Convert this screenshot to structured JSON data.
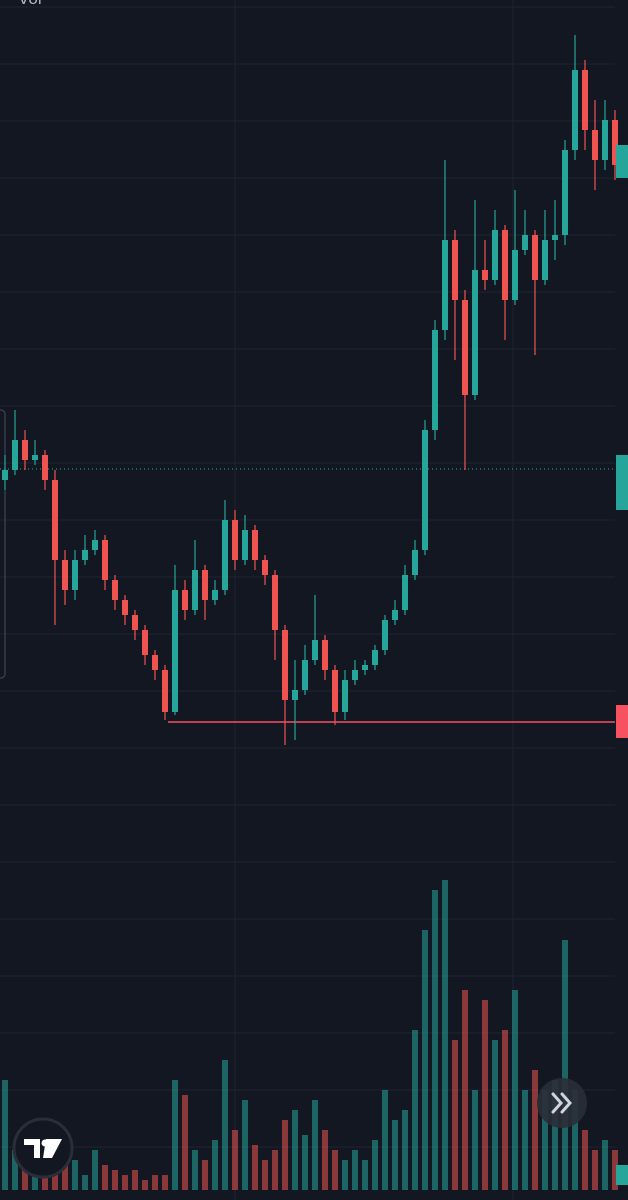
{
  "chart_data": {
    "type": "candlestick",
    "volume_label": "Vol",
    "up_color": "#26a69a",
    "down_color": "#ef5350",
    "ylim": [
      0,
      800
    ],
    "vlim": [
      0,
      320
    ],
    "price_lines": [
      {
        "value": 331,
        "style": "dotted",
        "color": "#26a69a"
      },
      {
        "value": 78,
        "style": "solid",
        "color": "#f7525f"
      }
    ],
    "ohlc": [
      [
        320,
        345,
        310,
        330
      ],
      [
        330,
        390,
        325,
        360
      ],
      [
        360,
        370,
        330,
        340
      ],
      [
        340,
        360,
        335,
        345
      ],
      [
        345,
        350,
        310,
        320
      ],
      [
        320,
        330,
        175,
        240
      ],
      [
        240,
        250,
        195,
        210
      ],
      [
        210,
        250,
        200,
        240
      ],
      [
        240,
        265,
        235,
        250
      ],
      [
        250,
        270,
        245,
        260
      ],
      [
        260,
        265,
        210,
        220
      ],
      [
        220,
        225,
        190,
        200
      ],
      [
        200,
        205,
        175,
        185
      ],
      [
        185,
        190,
        160,
        170
      ],
      [
        170,
        175,
        135,
        145
      ],
      [
        145,
        150,
        120,
        130
      ],
      [
        130,
        135,
        80,
        88
      ],
      [
        88,
        235,
        85,
        210
      ],
      [
        210,
        220,
        180,
        190
      ],
      [
        190,
        260,
        185,
        230
      ],
      [
        230,
        235,
        180,
        200
      ],
      [
        200,
        220,
        195,
        210
      ],
      [
        210,
        300,
        205,
        280
      ],
      [
        280,
        290,
        230,
        240
      ],
      [
        240,
        285,
        235,
        270
      ],
      [
        270,
        275,
        230,
        240
      ],
      [
        240,
        245,
        215,
        225
      ],
      [
        225,
        230,
        140,
        170
      ],
      [
        170,
        175,
        55,
        100
      ],
      [
        100,
        140,
        60,
        110
      ],
      [
        110,
        155,
        105,
        140
      ],
      [
        140,
        205,
        135,
        160
      ],
      [
        160,
        165,
        120,
        130
      ],
      [
        130,
        135,
        75,
        88
      ],
      [
        88,
        130,
        80,
        120
      ],
      [
        120,
        140,
        115,
        130
      ],
      [
        130,
        140,
        125,
        135
      ],
      [
        135,
        155,
        130,
        150
      ],
      [
        150,
        185,
        145,
        180
      ],
      [
        180,
        200,
        175,
        190
      ],
      [
        190,
        235,
        185,
        225
      ],
      [
        225,
        260,
        220,
        250
      ],
      [
        250,
        380,
        245,
        370
      ],
      [
        370,
        480,
        360,
        470
      ],
      [
        470,
        640,
        460,
        560
      ],
      [
        560,
        570,
        440,
        500
      ],
      [
        500,
        510,
        330,
        405
      ],
      [
        405,
        600,
        400,
        530
      ],
      [
        530,
        560,
        510,
        520
      ],
      [
        520,
        590,
        515,
        570
      ],
      [
        570,
        575,
        460,
        500
      ],
      [
        500,
        610,
        495,
        550
      ],
      [
        550,
        590,
        545,
        565
      ],
      [
        565,
        570,
        445,
        520
      ],
      [
        520,
        590,
        515,
        560
      ],
      [
        560,
        600,
        540,
        565
      ],
      [
        565,
        660,
        555,
        650
      ],
      [
        650,
        765,
        640,
        730
      ],
      [
        730,
        740,
        650,
        670
      ],
      [
        670,
        700,
        610,
        640
      ],
      [
        640,
        700,
        630,
        680
      ],
      [
        680,
        690,
        620,
        635
      ]
    ],
    "volume": [
      110,
      40,
      20,
      30,
      15,
      20,
      25,
      30,
      15,
      40,
      25,
      20,
      15,
      20,
      10,
      15,
      15,
      110,
      95,
      40,
      30,
      50,
      130,
      60,
      90,
      45,
      30,
      40,
      70,
      80,
      55,
      90,
      60,
      40,
      30,
      40,
      30,
      50,
      100,
      70,
      80,
      160,
      260,
      300,
      310,
      150,
      200,
      100,
      190,
      150,
      160,
      200,
      100,
      120,
      100,
      110,
      250,
      100,
      60,
      40,
      50,
      40
    ]
  }
}
